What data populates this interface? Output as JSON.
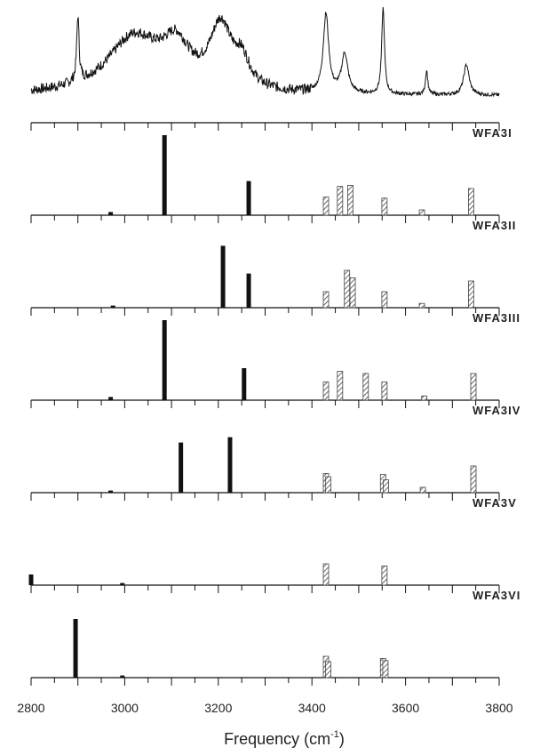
{
  "chart_data": {
    "type": "bar",
    "xlabel": "Frequency (cm",
    "xlabel_sup": "-1",
    "xlabel_close": ")",
    "xlim": [
      2800,
      3800
    ],
    "x_ticks": [
      "2800",
      "3000",
      "3200",
      "3400",
      "3600",
      "3800"
    ],
    "colors": {
      "ink": "#111111",
      "hatch": "#444444"
    },
    "spectrum": {
      "peaks": [
        {
          "x": 2900,
          "h": 0.75,
          "w": 3
        },
        {
          "x": 3020,
          "h": 0.65,
          "w": 70
        },
        {
          "x": 3110,
          "h": 0.45,
          "w": 35
        },
        {
          "x": 3205,
          "h": 0.72,
          "w": 28
        },
        {
          "x": 3250,
          "h": 0.3,
          "w": 20
        },
        {
          "x": 3430,
          "h": 0.9,
          "w": 7
        },
        {
          "x": 3470,
          "h": 0.45,
          "w": 8
        },
        {
          "x": 3552,
          "h": 1.0,
          "w": 3.5
        },
        {
          "x": 3645,
          "h": 0.28,
          "w": 3
        },
        {
          "x": 3730,
          "h": 0.35,
          "w": 7
        }
      ],
      "noise": 0.06
    },
    "panels": [
      {
        "label": "WFA3I",
        "solid": [
          [
            2970,
            0.03
          ],
          [
            3085,
            0.75
          ],
          [
            3265,
            0.32
          ]
        ],
        "hatched": [
          [
            3430,
            0.17
          ],
          [
            3460,
            0.27
          ],
          [
            3482,
            0.28
          ],
          [
            3555,
            0.16
          ],
          [
            3635,
            0.05
          ],
          [
            3740,
            0.25
          ]
        ]
      },
      {
        "label": "WFA3II",
        "solid": [
          [
            2975,
            0.02
          ],
          [
            3210,
            0.58
          ],
          [
            3265,
            0.32
          ]
        ],
        "hatched": [
          [
            3430,
            0.15
          ],
          [
            3475,
            0.35
          ],
          [
            3487,
            0.28
          ],
          [
            3555,
            0.15
          ],
          [
            3635,
            0.04
          ],
          [
            3740,
            0.25
          ]
        ]
      },
      {
        "label": "WFA3III",
        "solid": [
          [
            2970,
            0.03
          ],
          [
            3085,
            0.75
          ],
          [
            3255,
            0.3
          ]
        ],
        "hatched": [
          [
            3430,
            0.17
          ],
          [
            3460,
            0.27
          ],
          [
            3515,
            0.25
          ],
          [
            3555,
            0.17
          ],
          [
            3640,
            0.04
          ],
          [
            3745,
            0.25
          ]
        ]
      },
      {
        "label": "WFA3IV",
        "solid": [
          [
            2970,
            0.02
          ],
          [
            3120,
            0.47
          ],
          [
            3225,
            0.52
          ]
        ],
        "hatched": [
          [
            3430,
            0.18
          ],
          [
            3435,
            0.15
          ],
          [
            3552,
            0.17
          ],
          [
            3558,
            0.12
          ],
          [
            3637,
            0.05
          ],
          [
            3745,
            0.25
          ]
        ]
      },
      {
        "label": "WFA3V",
        "solid": [
          [
            2800,
            0.1
          ],
          [
            2995,
            0.02
          ]
        ],
        "hatched": [
          [
            3430,
            0.2
          ],
          [
            3555,
            0.18
          ]
        ]
      },
      {
        "label": "WFA3VI",
        "solid": [
          [
            2895,
            0.55
          ],
          [
            2995,
            0.02
          ]
        ],
        "hatched": [
          [
            3430,
            0.2
          ],
          [
            3435,
            0.15
          ],
          [
            3552,
            0.18
          ],
          [
            3557,
            0.16
          ]
        ]
      }
    ]
  }
}
